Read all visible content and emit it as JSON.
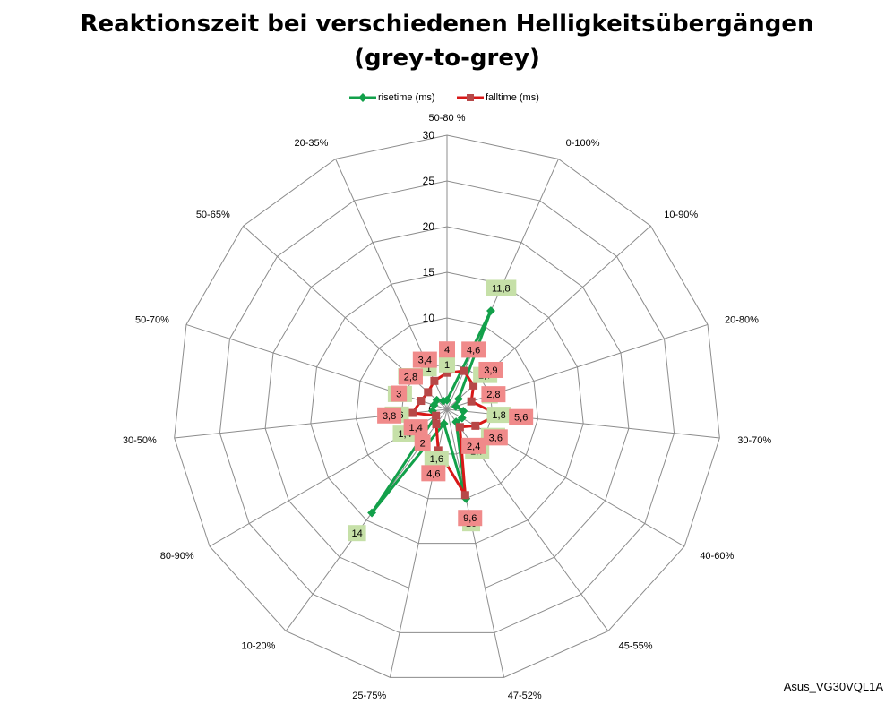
{
  "chart_data": {
    "type": "radar",
    "title_lines": [
      "Reaktionszeit bei verschiedenen Helligkeitsübergängen",
      "(grey-to-grey)"
    ],
    "categories": [
      "50-80 %",
      "0-100%",
      "10-90%",
      "20-80%",
      "30-70%",
      "40-60%",
      "45-55%",
      "47-52%",
      "25-75%",
      "10-20%",
      "80-90%",
      "30-50%",
      "50-70%",
      "50-65%",
      "20-35%"
    ],
    "rlim": [
      0,
      30
    ],
    "ticks": [
      "0",
      "5",
      "10",
      "15",
      "20",
      "25",
      "30"
    ],
    "tick_values": [
      0,
      5,
      10,
      15,
      20,
      25,
      30
    ],
    "grid": true,
    "legend_position": "top",
    "series": [
      {
        "name": "risetime (ms)",
        "color": "#12a04a",
        "label_bg": "#c6e0a8",
        "values": [
          1,
          11.8,
          1.7,
          1,
          1.8,
          1.9,
          1.7,
          10,
          1.6,
          14,
          1.4,
          1.6,
          1.5,
          1.5,
          1
        ],
        "labels": [
          "1",
          "11,8",
          "1,7",
          "1",
          "1,8",
          "1,9",
          "1,7",
          "10",
          "1,6",
          "14",
          "1,4",
          "1,6",
          "1,5",
          "1,5",
          "1"
        ]
      },
      {
        "name": "falltime (ms)",
        "color": "#d81818",
        "marker_color": "#b74848",
        "label_bg": "#f08a8a",
        "values": [
          4,
          4.6,
          3.9,
          2.8,
          5.6,
          3.6,
          2.4,
          9.6,
          4.6,
          2,
          1.4,
          3.8,
          3,
          2.8,
          3.4
        ],
        "labels": [
          "4",
          "4,6",
          "3,9",
          "2,8",
          "5,6",
          "3,6",
          "2,4",
          "9,6",
          "4,6",
          "2",
          "1,4",
          "3,8",
          "3",
          "2,8",
          "3,4"
        ]
      }
    ]
  },
  "footer": {
    "model": "Asus_VG30VQL1A"
  }
}
